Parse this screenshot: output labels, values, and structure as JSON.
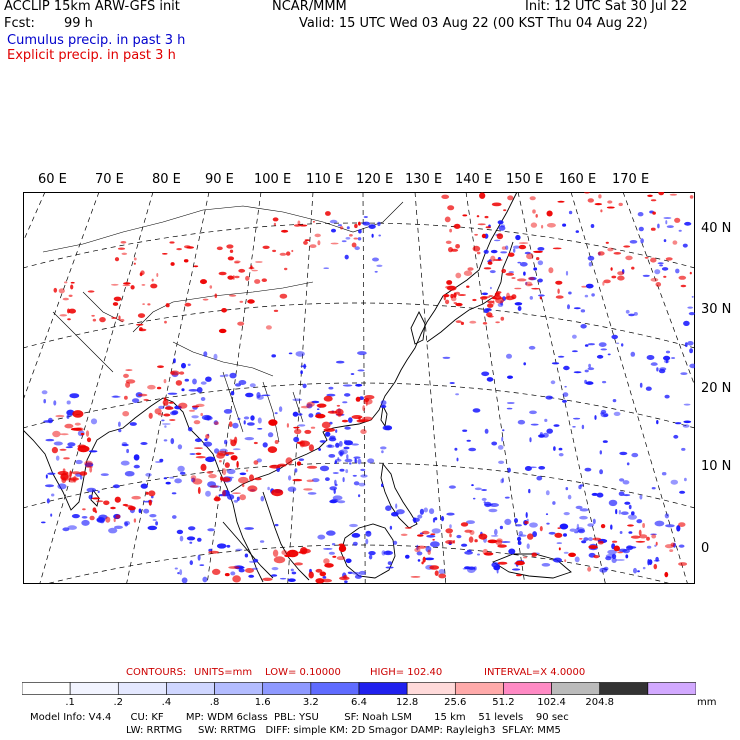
{
  "header": {
    "model": "ACCLIP 15km ARW-GFS init",
    "org": "NCAR/MMM",
    "init": "Init: 12 UTC Sat 30 Jul 22",
    "fcst_label": "Fcst:",
    "fcst_value": "99 h",
    "valid": "Valid: 15 UTC Wed 03 Aug 22 (00 KST Thu 04 Aug 22)",
    "legend_cumulus": "Cumulus precip. in past 3 h",
    "legend_explicit": "Explicit precip. in past 3 h"
  },
  "map": {
    "lon_labels": [
      "60 E",
      "70 E",
      "80 E",
      "90 E",
      "100 E",
      "110 E",
      "120 E",
      "130 E",
      "140 E",
      "150 E",
      "160 E",
      "170 E"
    ],
    "lat_labels": [
      "40 N",
      "30 N",
      "20 N",
      "10 N",
      "0"
    ],
    "colors": {
      "cumulus": "#1a1aff",
      "explicit": "#ee0000",
      "coast": "#000000",
      "grid": "#000000"
    }
  },
  "contours": {
    "label": "CONTOURS:",
    "units": "UNITS=mm",
    "low": "LOW=  0.10000",
    "high": "HIGH=   102.40",
    "interval": "INTERVAL=X   4.0000"
  },
  "colorbar": {
    "labels": [
      ".1",
      ".2",
      ".4",
      ".8",
      "1.6",
      "3.2",
      "6.4",
      "12.8",
      "25.6",
      "51.2",
      "102.4",
      "204.8"
    ],
    "unit": "mm",
    "colors": [
      "#ffffff",
      "#f2f4ff",
      "#e4e8ff",
      "#cfd6ff",
      "#b3bcff",
      "#8e99ff",
      "#5f6bff",
      "#2020ee",
      "#ffdada",
      "#ffaaaa",
      "#ff8ac4",
      "#bbbbbb",
      "#333333",
      "#d2a9ff"
    ]
  },
  "footer": {
    "line1": "Model Info: V4.4      CU: KF       MP: WDM 6class  PBL: YSU        SF: Noah LSM       15 km    51 levels    90 sec",
    "line2": "LW: RRTMG     SW: RRTMG   DIFF: simple KM: 2D Smagor DAMP: Rayleigh3  SFLAY: MM5"
  }
}
